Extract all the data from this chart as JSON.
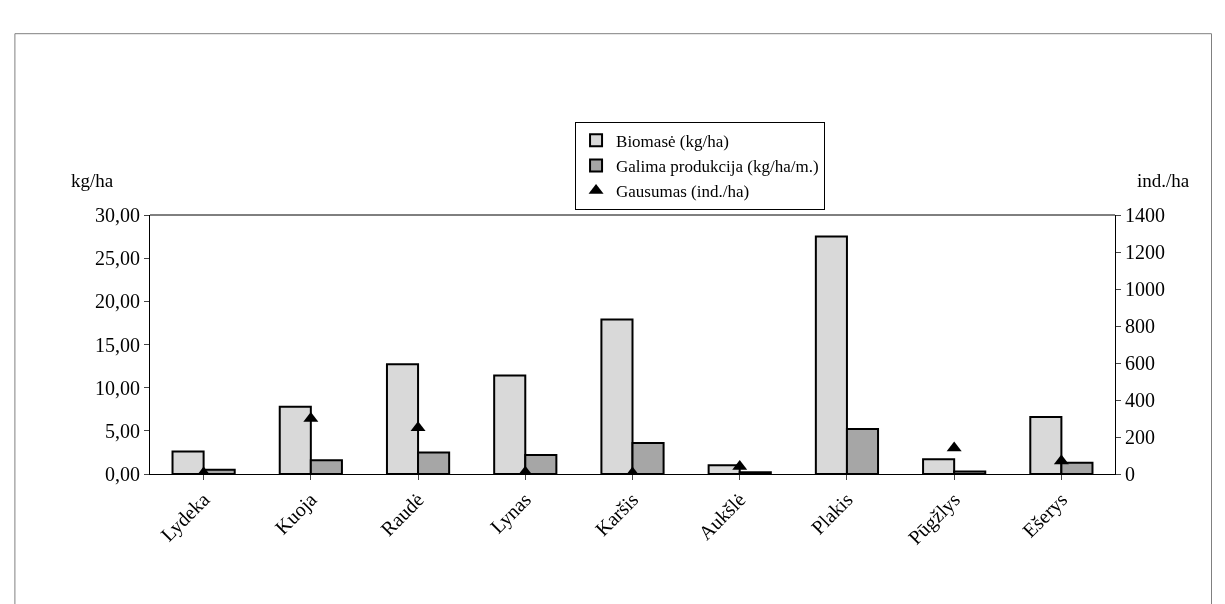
{
  "chart_data": {
    "type": "bar",
    "categories": [
      "Lydeka",
      "Kuoja",
      "Raudė",
      "Lynas",
      "Karšis",
      "Aukšlė",
      "Plakis",
      "Pūgžlys",
      "Ešerys"
    ],
    "series": [
      {
        "name": "Biomasė (kg/ha)",
        "color": "#d9d9d9",
        "values": [
          2.6,
          7.8,
          12.7,
          11.4,
          17.9,
          1.0,
          27.5,
          1.7,
          6.6
        ]
      },
      {
        "name": "Galima produkcija (kg/ha/m.)",
        "color": "#a6a6a6",
        "values": [
          0.5,
          1.6,
          2.5,
          2.2,
          3.6,
          0.2,
          5.2,
          0.3,
          1.3
        ]
      },
      {
        "name": "Gausumas (ind./ha)",
        "type": "scatter",
        "axis": "y2",
        "marker": "triangle",
        "color": "#000000",
        "values": [
          5,
          300,
          250,
          10,
          5,
          40,
          null,
          140,
          70
        ]
      }
    ],
    "ylabel": "kg/ha",
    "y2label": "ind./ha",
    "ylim": [
      0,
      30
    ],
    "yticks": [
      {
        "value": 0,
        "label": "0,00"
      },
      {
        "value": 5,
        "label": "5,00"
      },
      {
        "value": 10,
        "label": "10,00"
      },
      {
        "value": 15,
        "label": "15,00"
      },
      {
        "value": 20,
        "label": "20,00"
      },
      {
        "value": 25,
        "label": "25,00"
      },
      {
        "value": 30,
        "label": "30,00"
      }
    ],
    "y2lim": [
      0,
      1400
    ],
    "y2ticks": [
      0,
      200,
      400,
      600,
      800,
      1000,
      1200,
      1400
    ],
    "legend": "top"
  }
}
